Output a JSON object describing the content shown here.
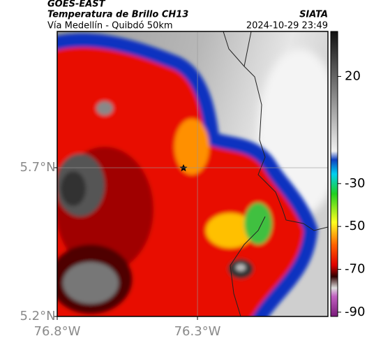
{
  "header": {
    "source": "GOES-EAST",
    "title": "Temperatura de Brillo CH13",
    "subtitle": "Vía Medellín - Quibdó 50km",
    "credit": "SIATA",
    "datetime": "2024-10-29 23:49"
  },
  "map": {
    "xlim": [
      -76.8,
      -75.835
    ],
    "ylim": [
      5.2,
      6.158
    ],
    "xticks": [
      {
        "value": -76.8,
        "label": "76.8°W"
      },
      {
        "value": -76.3,
        "label": "76.3°W"
      }
    ],
    "yticks": [
      {
        "value": 5.7,
        "label": "5.7°N"
      },
      {
        "value": 5.2,
        "label": "5.2°N"
      }
    ],
    "grid": true
  },
  "colorbar": {
    "clim": [
      -92,
      41
    ],
    "ticks": [
      20,
      -30,
      -50,
      -70,
      -90
    ]
  }
}
